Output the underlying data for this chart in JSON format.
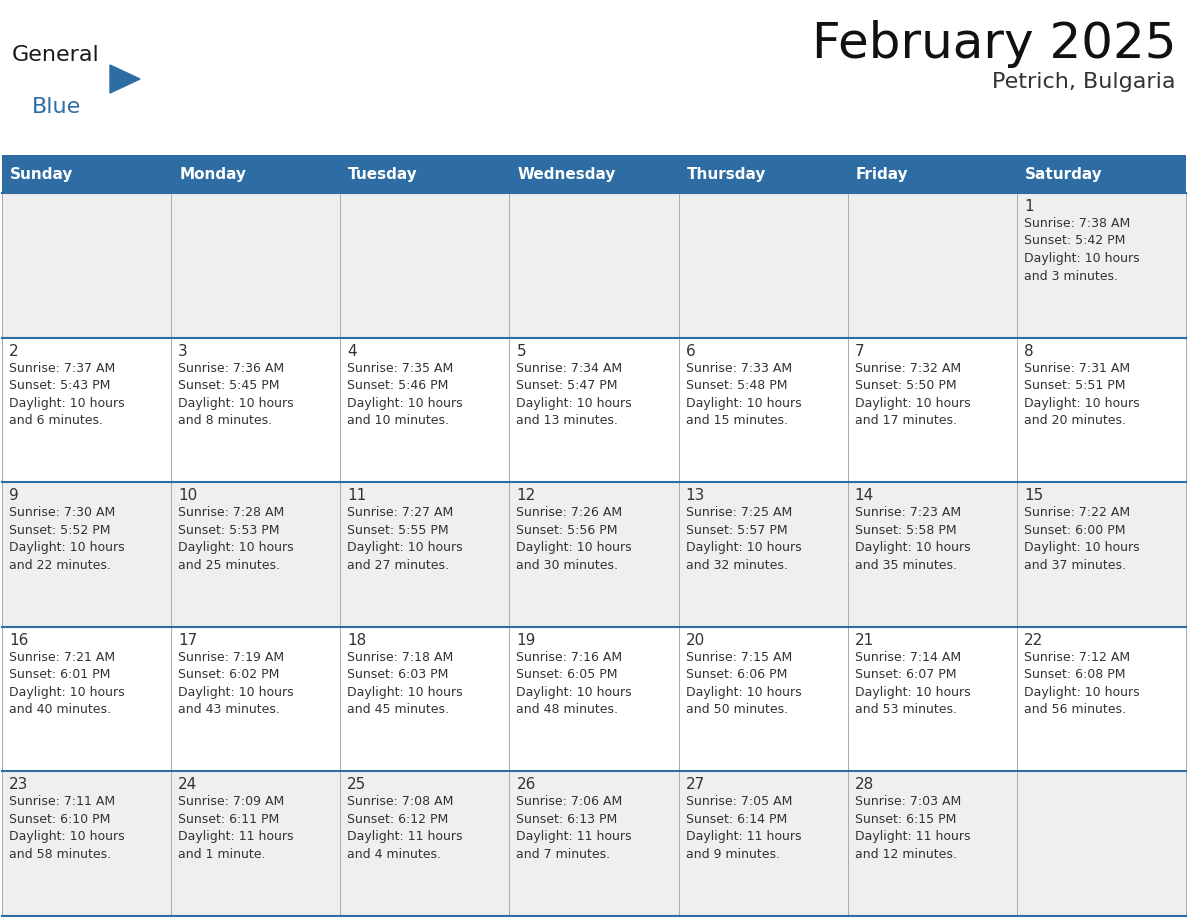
{
  "title": "February 2025",
  "subtitle": "Petrich, Bulgaria",
  "header_bg_color": "#2E6DA4",
  "header_text_color": "#FFFFFF",
  "cell_border_color": "#2E6DA4",
  "day_number_color": "#333333",
  "cell_text_color": "#333333",
  "bg_color": "#FFFFFF",
  "row_colors": [
    "#EFEFEF",
    "#FFFFFF",
    "#EFEFEF",
    "#FFFFFF",
    "#EFEFEF"
  ],
  "days_of_week": [
    "Sunday",
    "Monday",
    "Tuesday",
    "Wednesday",
    "Thursday",
    "Friday",
    "Saturday"
  ],
  "weeks": [
    [
      {
        "day": "",
        "info": ""
      },
      {
        "day": "",
        "info": ""
      },
      {
        "day": "",
        "info": ""
      },
      {
        "day": "",
        "info": ""
      },
      {
        "day": "",
        "info": ""
      },
      {
        "day": "",
        "info": ""
      },
      {
        "day": "1",
        "info": "Sunrise: 7:38 AM\nSunset: 5:42 PM\nDaylight: 10 hours\nand 3 minutes."
      }
    ],
    [
      {
        "day": "2",
        "info": "Sunrise: 7:37 AM\nSunset: 5:43 PM\nDaylight: 10 hours\nand 6 minutes."
      },
      {
        "day": "3",
        "info": "Sunrise: 7:36 AM\nSunset: 5:45 PM\nDaylight: 10 hours\nand 8 minutes."
      },
      {
        "day": "4",
        "info": "Sunrise: 7:35 AM\nSunset: 5:46 PM\nDaylight: 10 hours\nand 10 minutes."
      },
      {
        "day": "5",
        "info": "Sunrise: 7:34 AM\nSunset: 5:47 PM\nDaylight: 10 hours\nand 13 minutes."
      },
      {
        "day": "6",
        "info": "Sunrise: 7:33 AM\nSunset: 5:48 PM\nDaylight: 10 hours\nand 15 minutes."
      },
      {
        "day": "7",
        "info": "Sunrise: 7:32 AM\nSunset: 5:50 PM\nDaylight: 10 hours\nand 17 minutes."
      },
      {
        "day": "8",
        "info": "Sunrise: 7:31 AM\nSunset: 5:51 PM\nDaylight: 10 hours\nand 20 minutes."
      }
    ],
    [
      {
        "day": "9",
        "info": "Sunrise: 7:30 AM\nSunset: 5:52 PM\nDaylight: 10 hours\nand 22 minutes."
      },
      {
        "day": "10",
        "info": "Sunrise: 7:28 AM\nSunset: 5:53 PM\nDaylight: 10 hours\nand 25 minutes."
      },
      {
        "day": "11",
        "info": "Sunrise: 7:27 AM\nSunset: 5:55 PM\nDaylight: 10 hours\nand 27 minutes."
      },
      {
        "day": "12",
        "info": "Sunrise: 7:26 AM\nSunset: 5:56 PM\nDaylight: 10 hours\nand 30 minutes."
      },
      {
        "day": "13",
        "info": "Sunrise: 7:25 AM\nSunset: 5:57 PM\nDaylight: 10 hours\nand 32 minutes."
      },
      {
        "day": "14",
        "info": "Sunrise: 7:23 AM\nSunset: 5:58 PM\nDaylight: 10 hours\nand 35 minutes."
      },
      {
        "day": "15",
        "info": "Sunrise: 7:22 AM\nSunset: 6:00 PM\nDaylight: 10 hours\nand 37 minutes."
      }
    ],
    [
      {
        "day": "16",
        "info": "Sunrise: 7:21 AM\nSunset: 6:01 PM\nDaylight: 10 hours\nand 40 minutes."
      },
      {
        "day": "17",
        "info": "Sunrise: 7:19 AM\nSunset: 6:02 PM\nDaylight: 10 hours\nand 43 minutes."
      },
      {
        "day": "18",
        "info": "Sunrise: 7:18 AM\nSunset: 6:03 PM\nDaylight: 10 hours\nand 45 minutes."
      },
      {
        "day": "19",
        "info": "Sunrise: 7:16 AM\nSunset: 6:05 PM\nDaylight: 10 hours\nand 48 minutes."
      },
      {
        "day": "20",
        "info": "Sunrise: 7:15 AM\nSunset: 6:06 PM\nDaylight: 10 hours\nand 50 minutes."
      },
      {
        "day": "21",
        "info": "Sunrise: 7:14 AM\nSunset: 6:07 PM\nDaylight: 10 hours\nand 53 minutes."
      },
      {
        "day": "22",
        "info": "Sunrise: 7:12 AM\nSunset: 6:08 PM\nDaylight: 10 hours\nand 56 minutes."
      }
    ],
    [
      {
        "day": "23",
        "info": "Sunrise: 7:11 AM\nSunset: 6:10 PM\nDaylight: 10 hours\nand 58 minutes."
      },
      {
        "day": "24",
        "info": "Sunrise: 7:09 AM\nSunset: 6:11 PM\nDaylight: 11 hours\nand 1 minute."
      },
      {
        "day": "25",
        "info": "Sunrise: 7:08 AM\nSunset: 6:12 PM\nDaylight: 11 hours\nand 4 minutes."
      },
      {
        "day": "26",
        "info": "Sunrise: 7:06 AM\nSunset: 6:13 PM\nDaylight: 11 hours\nand 7 minutes."
      },
      {
        "day": "27",
        "info": "Sunrise: 7:05 AM\nSunset: 6:14 PM\nDaylight: 11 hours\nand 9 minutes."
      },
      {
        "day": "28",
        "info": "Sunrise: 7:03 AM\nSunset: 6:15 PM\nDaylight: 11 hours\nand 12 minutes."
      },
      {
        "day": "",
        "info": ""
      }
    ]
  ],
  "logo_text_general": "General",
  "logo_text_blue": "Blue",
  "logo_color_general": "#1a1a1a",
  "logo_color_blue": "#2E6DA4",
  "logo_triangle_color": "#2E6DA4",
  "title_fontsize": 36,
  "subtitle_fontsize": 16,
  "dow_fontsize": 11,
  "day_num_fontsize": 11,
  "cell_text_fontsize": 9
}
